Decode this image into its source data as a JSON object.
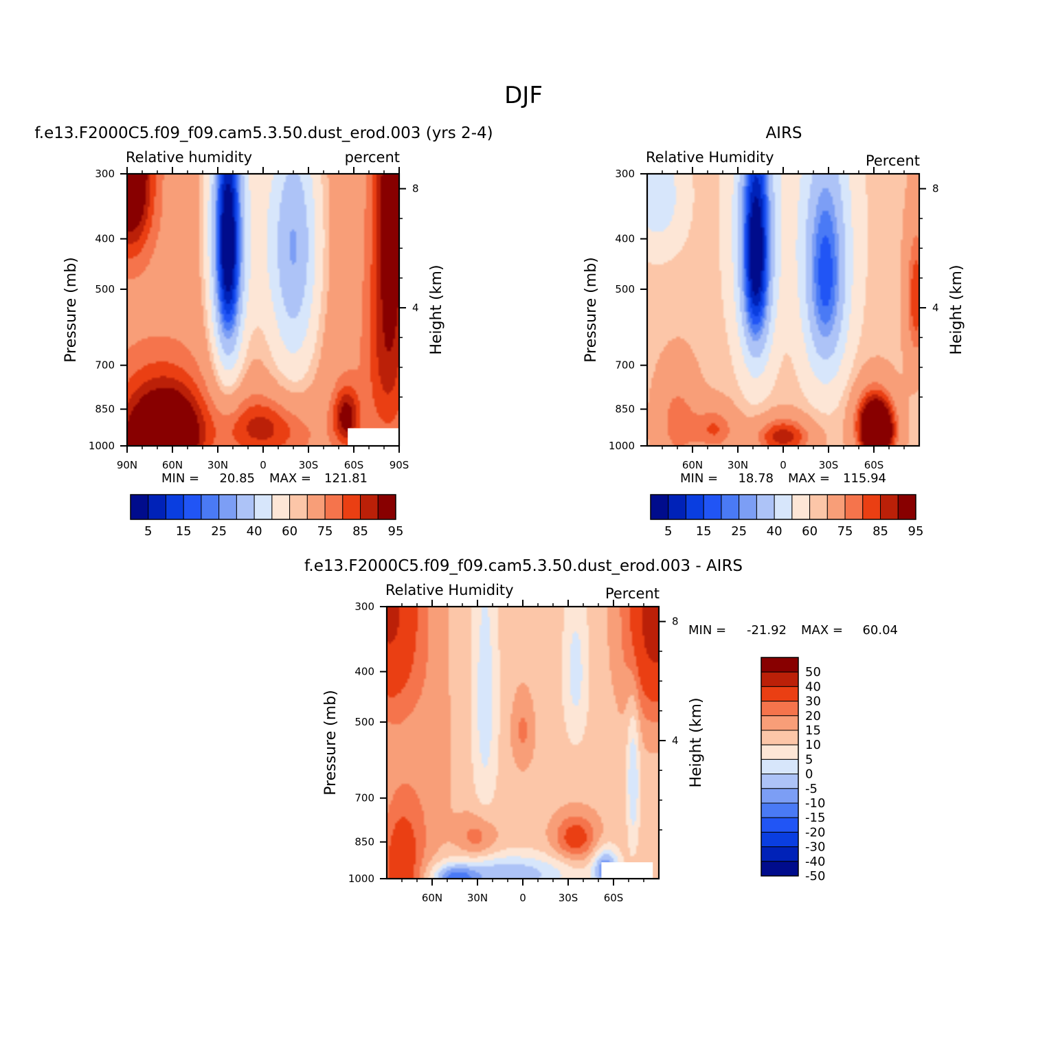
{
  "figure": {
    "title": "DJF"
  },
  "chart_data": [
    {
      "type": "heatmap",
      "title": "f.e13.F2000C5.f09_f09.cam5.3.50.dust_erod.003 (yrs 2-4)",
      "left_string": "Relative humidity",
      "right_string": "percent",
      "ylabel": "Pressure (mb)",
      "ylabel_right": "Height (km)",
      "x_ticks": [
        "90N",
        "60N",
        "30N",
        "0",
        "30S",
        "60S",
        "90S"
      ],
      "x_tick_values": [
        90,
        60,
        30,
        0,
        -30,
        -60,
        -90
      ],
      "xlim": [
        90,
        -90
      ],
      "y_ticks": [
        "300",
        "400",
        "500",
        "700",
        "850",
        "1000"
      ],
      "y_tick_values": [
        300,
        400,
        500,
        700,
        850,
        1000
      ],
      "ylim": [
        1000,
        300
      ],
      "y_right_ticks": [
        "8",
        "4"
      ],
      "y_right_tick_values": [
        8,
        4
      ],
      "min_label": "MIN =",
      "min_value": "20.85",
      "max_label": "MAX =",
      "max_value": "121.81",
      "colorbar_labels": [
        "5",
        "15",
        "25",
        "40",
        "60",
        "75",
        "85",
        "95"
      ],
      "colorbar_levels": [
        5,
        10,
        15,
        20,
        25,
        30,
        40,
        50,
        60,
        65,
        75,
        80,
        85,
        90,
        95
      ],
      "features": [
        {
          "lat": 88,
          "p": 300,
          "value": 105,
          "sx": 10,
          "sp": 80
        },
        {
          "lat": 72,
          "p": 990,
          "value": 102,
          "sx": 16,
          "sp": 110
        },
        {
          "lat": 55,
          "p": 960,
          "value": 88,
          "sx": 12,
          "sp": 120
        },
        {
          "lat": 70,
          "p": 820,
          "value": 84,
          "sx": 20,
          "sp": 120
        },
        {
          "lat": 23,
          "p": 440,
          "value": 22,
          "sx": 7,
          "sp": 200
        },
        {
          "lat": 25,
          "p": 360,
          "value": 45,
          "sx": 10,
          "sp": 180
        },
        {
          "lat": -20,
          "p": 500,
          "value": 42,
          "sx": 12,
          "sp": 200
        },
        {
          "lat": -20,
          "p": 360,
          "value": 55,
          "sx": 14,
          "sp": 120
        },
        {
          "lat": 5,
          "p": 420,
          "value": 64,
          "sx": 8,
          "sp": 200
        },
        {
          "lat": 0,
          "p": 920,
          "value": 88,
          "sx": 20,
          "sp": 90
        },
        {
          "lat": -55,
          "p": 880,
          "value": 94,
          "sx": 6,
          "sp": 80
        },
        {
          "lat": -85,
          "p": 320,
          "value": 95,
          "sx": 8,
          "sp": 200
        },
        {
          "lat": -82,
          "p": 700,
          "value": 85,
          "sx": 10,
          "sp": 200
        }
      ],
      "background_value": 72,
      "missing_region": {
        "lat_from": -56,
        "lat_to": -90,
        "p_from": 925,
        "p_to": 1000
      }
    },
    {
      "type": "heatmap",
      "title": "AIRS",
      "left_string": "Relative Humidity",
      "right_string": "Percent",
      "ylabel": "Pressure (mb)",
      "ylabel_right": "Height (km)",
      "x_ticks": [
        "60N",
        "30N",
        "0",
        "30S",
        "60S"
      ],
      "x_tick_values": [
        60,
        30,
        0,
        -30,
        -60
      ],
      "xlim": [
        90,
        -90
      ],
      "y_ticks": [
        "300",
        "400",
        "500",
        "700",
        "850",
        "1000"
      ],
      "y_tick_values": [
        300,
        400,
        500,
        700,
        850,
        1000
      ],
      "ylim": [
        1000,
        300
      ],
      "y_right_ticks": [
        "8",
        "4"
      ],
      "y_right_tick_values": [
        8,
        4
      ],
      "min_label": "MIN =",
      "min_value": "18.78",
      "max_label": "MAX =",
      "max_value": "115.94",
      "colorbar_labels": [
        "5",
        "15",
        "25",
        "40",
        "60",
        "75",
        "85",
        "95"
      ],
      "colorbar_levels": [
        5,
        10,
        15,
        20,
        25,
        30,
        40,
        50,
        60,
        65,
        75,
        80,
        85,
        90,
        95
      ],
      "features": [
        {
          "lat": 83,
          "p": 330,
          "value": 42,
          "sx": 12,
          "sp": 60
        },
        {
          "lat": 18,
          "p": 450,
          "value": 18,
          "sx": 7,
          "sp": 170
        },
        {
          "lat": 18,
          "p": 360,
          "value": 40,
          "sx": 12,
          "sp": 180
        },
        {
          "lat": -28,
          "p": 520,
          "value": 30,
          "sx": 10,
          "sp": 170
        },
        {
          "lat": -28,
          "p": 380,
          "value": 45,
          "sx": 14,
          "sp": 150
        },
        {
          "lat": -62,
          "p": 950,
          "value": 108,
          "sx": 8,
          "sp": 80
        },
        {
          "lat": -60,
          "p": 860,
          "value": 82,
          "sx": 10,
          "sp": 90
        },
        {
          "lat": 0,
          "p": 960,
          "value": 88,
          "sx": 14,
          "sp": 60
        },
        {
          "lat": 70,
          "p": 900,
          "value": 78,
          "sx": 10,
          "sp": 140
        },
        {
          "lat": 45,
          "p": 930,
          "value": 80,
          "sx": 10,
          "sp": 70
        },
        {
          "lat": -88,
          "p": 520,
          "value": 84,
          "sx": 5,
          "sp": 120
        }
      ],
      "background_value": 63,
      "missing_region": null
    },
    {
      "type": "heatmap",
      "title": "f.e13.F2000C5.f09_f09.cam5.3.50.dust_erod.003 - AIRS",
      "left_string": "Relative Humidity",
      "right_string": "Percent",
      "ylabel": "Pressure (mb)",
      "ylabel_right": "Height (km)",
      "x_ticks": [
        "60N",
        "30N",
        "0",
        "30S",
        "60S"
      ],
      "x_tick_values": [
        60,
        30,
        0,
        -30,
        -60
      ],
      "xlim": [
        90,
        -90
      ],
      "y_ticks": [
        "300",
        "400",
        "500",
        "700",
        "850",
        "1000"
      ],
      "y_tick_values": [
        300,
        400,
        500,
        700,
        850,
        1000
      ],
      "ylim": [
        1000,
        300
      ],
      "y_right_ticks": [
        "8",
        "4"
      ],
      "y_right_tick_values": [
        8,
        4
      ],
      "min_label": "MIN =",
      "min_value": "-21.92",
      "max_label": "MAX =",
      "max_value": "60.04",
      "colorbar_labels": [
        "50",
        "40",
        "30",
        "20",
        "15",
        "10",
        "5",
        "0",
        "-5",
        "-10",
        "-15",
        "-20",
        "-30",
        "-40",
        "-50"
      ],
      "colorbar_levels": [
        -50,
        -40,
        -30,
        -20,
        -15,
        -10,
        -5,
        0,
        5,
        10,
        15,
        20,
        30,
        40,
        50
      ],
      "features": [
        {
          "lat": 88,
          "p": 300,
          "value": 32,
          "sx": 14,
          "sp": 120
        },
        {
          "lat": -88,
          "p": 300,
          "value": 36,
          "sx": 14,
          "sp": 120
        },
        {
          "lat": 80,
          "p": 950,
          "value": 26,
          "sx": 10,
          "sp": 200
        },
        {
          "lat": 60,
          "p": 600,
          "value": 12,
          "sx": 10,
          "sp": 300
        },
        {
          "lat": 25,
          "p": 450,
          "value": -3,
          "sx": 6,
          "sp": 200
        },
        {
          "lat": 0,
          "p": 520,
          "value": 16,
          "sx": 5,
          "sp": 60
        },
        {
          "lat": -35,
          "p": 400,
          "value": -2,
          "sx": 6,
          "sp": 100
        },
        {
          "lat": -35,
          "p": 835,
          "value": 24,
          "sx": 10,
          "sp": 60
        },
        {
          "lat": 30,
          "p": 835,
          "value": 18,
          "sx": 9,
          "sp": 60
        },
        {
          "lat": 10,
          "p": 980,
          "value": -9,
          "sx": 30,
          "sp": 60
        },
        {
          "lat": 45,
          "p": 1000,
          "value": -12,
          "sx": 10,
          "sp": 40
        },
        {
          "lat": -55,
          "p": 960,
          "value": -15,
          "sx": 6,
          "sp": 60
        },
        {
          "lat": -73,
          "p": 640,
          "value": -5,
          "sx": 3,
          "sp": 150
        }
      ],
      "background_value": 8,
      "missing_region": {
        "lat_from": -52,
        "lat_to": -86,
        "p_from": 930,
        "p_to": 1000
      }
    }
  ],
  "colors": {
    "colorbar_palette": [
      "#000c8c",
      "#0022b8",
      "#0a3ee0",
      "#2155f5",
      "#4a7af5",
      "#7c9ef5",
      "#adc3f7",
      "#d7e6fb",
      "#fde6d6",
      "#fcc6a8",
      "#f89e78",
      "#f5744c",
      "#ea3f13",
      "#bb2008",
      "#880000"
    ]
  }
}
